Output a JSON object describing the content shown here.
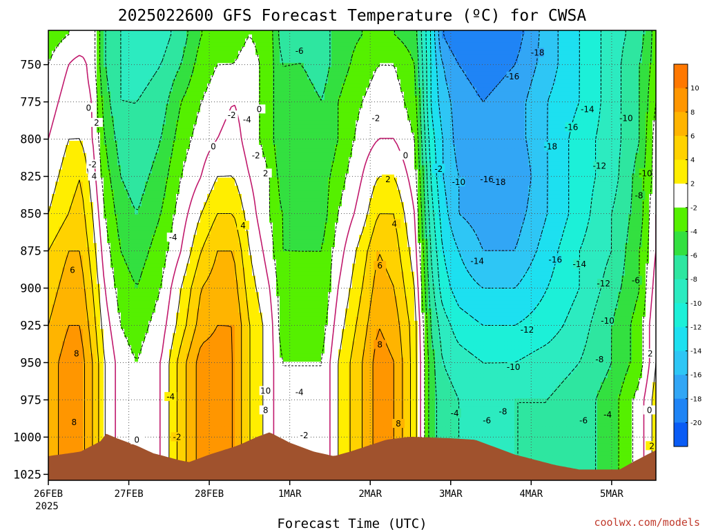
{
  "chart_data": {
    "type": "heatmap",
    "title": "2025022600 GFS Forecast Temperature (ºC) for CWSA",
    "xlabel": "Forecast Time (UTC)",
    "credit": "coolwx.com/models",
    "x_ticks": [
      "26FEB",
      "27FEB",
      "28FEB",
      "1MAR",
      "2MAR",
      "3MAR",
      "4MAR",
      "5MAR"
    ],
    "x_sub": "2025",
    "y_ticks": [
      750,
      775,
      800,
      825,
      850,
      875,
      900,
      925,
      950,
      975,
      1000,
      1025
    ],
    "ylim": [
      1029,
      727
    ],
    "xlim_days": [
      0,
      7.55
    ],
    "colorbar": {
      "levels": [
        -20,
        -18,
        -16,
        -14,
        -12,
        -10,
        -8,
        -6,
        -4,
        -2,
        2,
        4,
        6,
        8,
        10
      ],
      "tick_labels": [
        "10",
        "8",
        "6",
        "4",
        "2",
        "-2",
        "-4",
        "-6",
        "-8",
        "-10",
        "-12",
        "-14",
        "-16",
        "-18",
        "-20"
      ],
      "colors": [
        "#0a5cf5",
        "#1f84f5",
        "#32a6f5",
        "#2ec6f5",
        "#1de0f0",
        "#1cf0d8",
        "#2cebc0",
        "#2ee6a0",
        "#33e040",
        "#55f000",
        "#ffffff",
        "#ffee00",
        "#ffd200",
        "#ffb400",
        "#ff9600",
        "#ff7800"
      ]
    },
    "surface_pressure": {
      "days": [
        0,
        0.4,
        0.65,
        0.72,
        0.85,
        1.1,
        1.3,
        1.65,
        1.75,
        2.0,
        2.35,
        2.6,
        2.75,
        3.0,
        3.3,
        3.55,
        3.75,
        4.2,
        4.5,
        5.0,
        5.3,
        5.8,
        6.3,
        6.6,
        7.1,
        7.3,
        7.55
      ],
      "hPa": [
        1013,
        1010,
        1003,
        998,
        1001,
        1006,
        1011,
        1016,
        1017,
        1012,
        1006,
        1000,
        997,
        1004,
        1010,
        1013,
        1010,
        1002,
        1000,
        1001,
        1002,
        1012,
        1019,
        1022,
        1022,
        1016,
        1009
      ]
    },
    "field_ctrl": {
      "days": [
        0,
        0.25,
        0.4,
        0.55,
        0.7,
        0.9,
        1.1,
        1.4,
        1.65,
        1.9,
        2.1,
        2.3,
        2.5,
        2.75,
        2.9,
        3.15,
        3.4,
        3.6,
        3.9,
        4.1,
        4.3,
        4.55,
        4.75,
        4.9,
        5.1,
        5.4,
        5.8,
        6.2,
        6.6,
        7.0,
        7.35,
        7.55
      ],
      "p_hPa": [
        730,
        750,
        775,
        800,
        825,
        850,
        875,
        900,
        925,
        950,
        975,
        1000,
        1025
      ],
      "temps_C": [
        [
          -3,
          -2,
          -2,
          -1,
          -6,
          -8,
          -10,
          -9,
          -7,
          -4,
          -3,
          -3,
          -2,
          -3,
          -7,
          -6,
          -7,
          -5,
          -4,
          -3,
          -4,
          -5,
          -12,
          -18,
          -20,
          -20,
          -19,
          -15,
          -12,
          -9,
          -7,
          -3
        ],
        [
          -2,
          0,
          1,
          -1,
          -6,
          -8,
          -9,
          -8,
          -6,
          -3,
          -2,
          -2,
          -1,
          -3,
          -6,
          -6,
          -7,
          -5,
          -3,
          -2,
          -2,
          -4,
          -12,
          -16,
          -18,
          -19,
          -18,
          -15,
          -12,
          -9,
          -6,
          -3
        ],
        [
          -1,
          1,
          1,
          0,
          -5,
          -8,
          -8,
          -7,
          -4,
          -2,
          -1,
          0,
          -1,
          -3,
          -6,
          -5,
          -6,
          -4,
          -2,
          -1,
          -1,
          -3,
          -12,
          -15,
          -17,
          -18,
          -17,
          -14,
          -12,
          -9,
          -6,
          -2
        ],
        [
          0,
          2,
          2,
          0,
          -4,
          -7,
          -8,
          -6,
          -3,
          -1,
          0,
          1,
          -1,
          -3,
          -6,
          -5,
          -6,
          -4,
          -1,
          0,
          0,
          -2,
          -11,
          -14,
          -17,
          -18,
          -17,
          -14,
          -11,
          -9,
          -6,
          -1
        ],
        [
          1,
          3,
          4,
          1,
          -3,
          -6,
          -7,
          -5,
          -2,
          0,
          2,
          2,
          0,
          -2,
          -5,
          -5,
          -5,
          -3,
          0,
          2,
          2,
          -1,
          -10,
          -14,
          -16,
          -18,
          -18,
          -14,
          -11,
          -9,
          -5,
          -1
        ],
        [
          2,
          4,
          5,
          2,
          -2,
          -5,
          -6,
          -4,
          -1,
          2,
          4,
          4,
          1,
          -2,
          -4,
          -5,
          -5,
          -2,
          1,
          4,
          4,
          0,
          -9,
          -13,
          -16,
          -17,
          -17,
          -14,
          -11,
          -8,
          -5,
          0
        ],
        [
          4,
          6,
          6,
          3,
          -1,
          -4,
          -5,
          -3,
          0,
          4,
          6,
          6,
          2,
          -1,
          -4,
          -4,
          -4,
          -1,
          3,
          6,
          5,
          1,
          -8,
          -12,
          -14,
          -16,
          -16,
          -13,
          -10,
          -8,
          -4,
          0
        ],
        [
          5,
          7,
          7,
          4,
          0,
          -3,
          -4,
          -2,
          2,
          6,
          7,
          7,
          3,
          0,
          -3,
          -4,
          -4,
          0,
          4,
          7,
          6,
          2,
          -7,
          -11,
          -13,
          -14,
          -14,
          -12,
          -10,
          -7,
          -4,
          1
        ],
        [
          6,
          8,
          8,
          5,
          1,
          -2,
          -3,
          -1,
          3,
          7,
          8,
          8,
          4,
          1,
          -3,
          -3,
          -3,
          1,
          5,
          8,
          7,
          3,
          -6,
          -9,
          -11,
          -12,
          -12,
          -11,
          -9,
          -6,
          -3,
          2
        ],
        [
          7,
          9,
          9,
          6,
          2,
          -1,
          -2,
          0,
          5,
          9,
          9,
          8,
          4,
          1,
          -2,
          -2,
          -2,
          2,
          6,
          9,
          8,
          3,
          -5,
          -8,
          -9,
          -10,
          -10,
          -9,
          -8,
          -6,
          -3,
          2
        ],
        [
          7,
          9,
          9,
          6,
          2,
          -1,
          -2,
          0,
          5,
          9,
          9,
          8,
          4,
          1,
          -2,
          -2,
          -2,
          2,
          6,
          9,
          8,
          3,
          -5,
          -7,
          -8,
          -9,
          -8,
          -8,
          -7,
          -5,
          -1,
          3
        ],
        [
          7,
          9,
          9,
          6,
          2,
          -1,
          -2,
          0,
          5,
          9,
          9,
          8,
          4,
          1,
          -2,
          -2,
          -2,
          2,
          6,
          9,
          8,
          3,
          -5,
          -7,
          -8,
          -9,
          -8,
          -8,
          -7,
          -5,
          -1,
          3
        ],
        [
          7,
          9,
          9,
          6,
          2,
          -1,
          -2,
          0,
          5,
          9,
          9,
          8,
          4,
          1,
          -2,
          -2,
          -2,
          2,
          6,
          9,
          8,
          3,
          -5,
          -7,
          -8,
          -9,
          -8,
          -8,
          -7,
          -5,
          -1,
          3
        ]
      ]
    },
    "contour_labels": [
      {
        "day": 0.55,
        "p": 817,
        "text": "-2"
      },
      {
        "day": 1.55,
        "p": 866,
        "text": "-4"
      },
      {
        "day": 1.52,
        "p": 973,
        "text": "-4"
      },
      {
        "day": 1.1,
        "p": 1002,
        "text": "0"
      },
      {
        "day": 1.6,
        "p": 1000,
        "text": "-2"
      },
      {
        "day": 2.28,
        "p": 784,
        "text": "-2"
      },
      {
        "day": 2.47,
        "p": 787,
        "text": "-4"
      },
      {
        "day": 2.58,
        "p": 811,
        "text": "-2"
      },
      {
        "day": 3.12,
        "p": 741,
        "text": "-6"
      },
      {
        "day": 3.12,
        "p": 970,
        "text": "-4"
      },
      {
        "day": 3.18,
        "p": 999,
        "text": "-2"
      },
      {
        "day": 4.07,
        "p": 786,
        "text": "-2"
      },
      {
        "day": 4.85,
        "p": 820,
        "text": "-2"
      },
      {
        "day": 5.1,
        "p": 829,
        "text": "-10"
      },
      {
        "day": 5.45,
        "p": 827,
        "text": "-16"
      },
      {
        "day": 5.6,
        "p": 829,
        "text": "-18"
      },
      {
        "day": 6.08,
        "p": 742,
        "text": "-18"
      },
      {
        "day": 5.77,
        "p": 758,
        "text": "-16"
      },
      {
        "day": 6.7,
        "p": 780,
        "text": "-14"
      },
      {
        "day": 6.5,
        "p": 792,
        "text": "-16"
      },
      {
        "day": 6.24,
        "p": 805,
        "text": "-18"
      },
      {
        "day": 6.85,
        "p": 818,
        "text": "-12"
      },
      {
        "day": 7.18,
        "p": 786,
        "text": "-10"
      },
      {
        "day": 7.42,
        "p": 823,
        "text": "-10"
      },
      {
        "day": 7.34,
        "p": 838,
        "text": "-8"
      },
      {
        "day": 5.33,
        "p": 882,
        "text": "-14"
      },
      {
        "day": 6.3,
        "p": 881,
        "text": "-16"
      },
      {
        "day": 6.6,
        "p": 884,
        "text": "-14"
      },
      {
        "day": 6.9,
        "p": 897,
        "text": "-12"
      },
      {
        "day": 7.3,
        "p": 895,
        "text": "-6"
      },
      {
        "day": 5.95,
        "p": 928,
        "text": "-12"
      },
      {
        "day": 5.78,
        "p": 953,
        "text": "-10"
      },
      {
        "day": 6.95,
        "p": 922,
        "text": "-10"
      },
      {
        "day": 6.85,
        "p": 948,
        "text": "-8"
      },
      {
        "day": 5.65,
        "p": 983,
        "text": "-8"
      },
      {
        "day": 5.45,
        "p": 989,
        "text": "-6"
      },
      {
        "day": 5.05,
        "p": 984,
        "text": "-4"
      },
      {
        "day": 6.65,
        "p": 989,
        "text": "-6"
      },
      {
        "day": 6.95,
        "p": 985,
        "text": "-4"
      },
      {
        "day": 7.48,
        "p": 944,
        "text": "2"
      },
      {
        "day": 7.47,
        "p": 982,
        "text": "0"
      },
      {
        "day": 7.5,
        "p": 1006,
        "text": "2"
      },
      {
        "day": 0.5,
        "p": 779,
        "text": "0"
      },
      {
        "day": 0.6,
        "p": 789,
        "text": "2"
      },
      {
        "day": 0.57,
        "p": 825,
        "text": "4"
      },
      {
        "day": 0.3,
        "p": 888,
        "text": "6"
      },
      {
        "day": 0.35,
        "p": 944,
        "text": "8"
      },
      {
        "day": 0.32,
        "p": 990,
        "text": "8"
      },
      {
        "day": 2.05,
        "p": 805,
        "text": "0"
      },
      {
        "day": 2.62,
        "p": 780,
        "text": "0"
      },
      {
        "day": 2.7,
        "p": 823,
        "text": "2"
      },
      {
        "day": 2.42,
        "p": 858,
        "text": "4"
      },
      {
        "day": 2.7,
        "p": 969,
        "text": "10"
      },
      {
        "day": 2.7,
        "p": 982,
        "text": "8"
      },
      {
        "day": 4.44,
        "p": 811,
        "text": "0"
      },
      {
        "day": 4.22,
        "p": 827,
        "text": "2"
      },
      {
        "day": 4.3,
        "p": 857,
        "text": "4"
      },
      {
        "day": 4.12,
        "p": 885,
        "text": "6"
      },
      {
        "day": 4.12,
        "p": 938,
        "text": "8"
      },
      {
        "day": 4.35,
        "p": 991,
        "text": "8"
      }
    ]
  }
}
